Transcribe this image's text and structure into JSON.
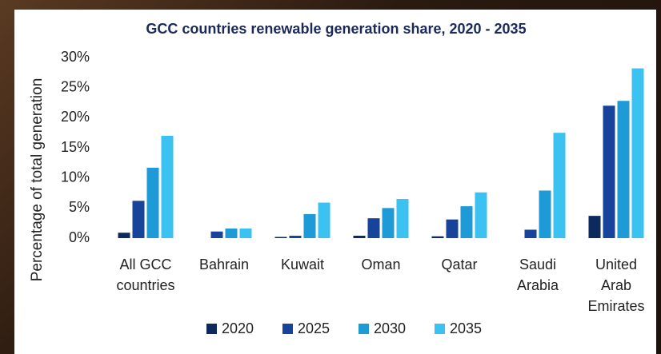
{
  "chart_data": {
    "type": "bar",
    "title": "GCC countries renewable generation share, 2020 - 2035",
    "y_label": "Percentage of total generation",
    "categories": [
      "All GCC countries",
      "Bahrain",
      "Kuwait",
      "Oman",
      "Qatar",
      "Saudi Arabia",
      "United Arab Emirates"
    ],
    "series": [
      {
        "name": "2020",
        "color": "#0d2a5e",
        "values": [
          0.9,
          0,
          0.2,
          0.4,
          0.3,
          0,
          3.7
        ]
      },
      {
        "name": "2025",
        "color": "#17449a",
        "values": [
          6.2,
          1.1,
          0.4,
          3.3,
          3.1,
          1.4,
          22.0
        ]
      },
      {
        "name": "2030",
        "color": "#1e9ad6",
        "values": [
          11.7,
          1.6,
          4.0,
          5.0,
          5.3,
          7.9,
          22.8
        ]
      },
      {
        "name": "2035",
        "color": "#3cc2f0",
        "values": [
          17.0,
          1.6,
          5.9,
          6.5,
          7.6,
          17.5,
          28.2
        ]
      }
    ],
    "ylim": [
      0,
      30
    ],
    "yticks": [
      {
        "value": 0,
        "label": "0%"
      },
      {
        "value": 5,
        "label": "5%"
      },
      {
        "value": 10,
        "label": "10%"
      },
      {
        "value": 15,
        "label": "15%"
      },
      {
        "value": 20,
        "label": "20%"
      },
      {
        "value": 25,
        "label": "25%"
      },
      {
        "value": 30,
        "label": "30%"
      }
    ],
    "grid": false,
    "legend": "bottom"
  }
}
